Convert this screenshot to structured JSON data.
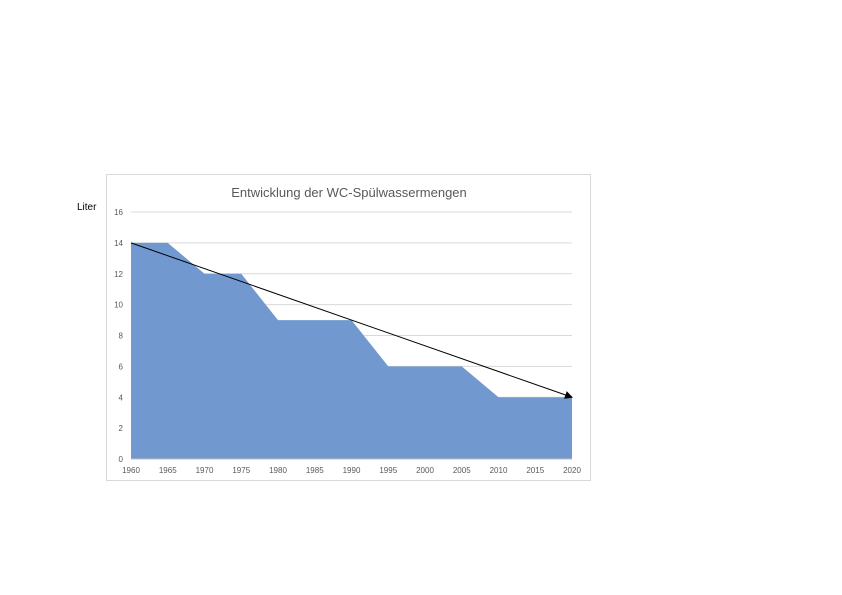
{
  "chart_data": {
    "type": "area",
    "title": "Entwicklung der WC-Spülwassermengen",
    "ylabel": "Liter",
    "xlabel": "",
    "ylim": [
      0,
      16
    ],
    "yticks": [
      "0",
      "2",
      "4",
      "6",
      "8",
      "10",
      "12",
      "14",
      "16"
    ],
    "categories": [
      "1960",
      "1965",
      "1970",
      "1975",
      "1980",
      "1985",
      "1990",
      "1995",
      "2000",
      "2005",
      "2010",
      "2015",
      "2020"
    ],
    "series": [
      {
        "values": [
          14,
          14,
          12,
          12,
          9,
          9,
          9,
          6,
          6,
          6,
          4,
          4,
          4
        ]
      }
    ],
    "trend_arrow": {
      "from": [
        1960,
        14
      ],
      "to": [
        2020,
        4
      ]
    },
    "grid": true,
    "legend": "none",
    "colors": {
      "area": "#7199d0",
      "grid": "#d9d9d9",
      "axis": "#bfbfbf",
      "text": "#595959",
      "arrow": "#000000"
    }
  }
}
